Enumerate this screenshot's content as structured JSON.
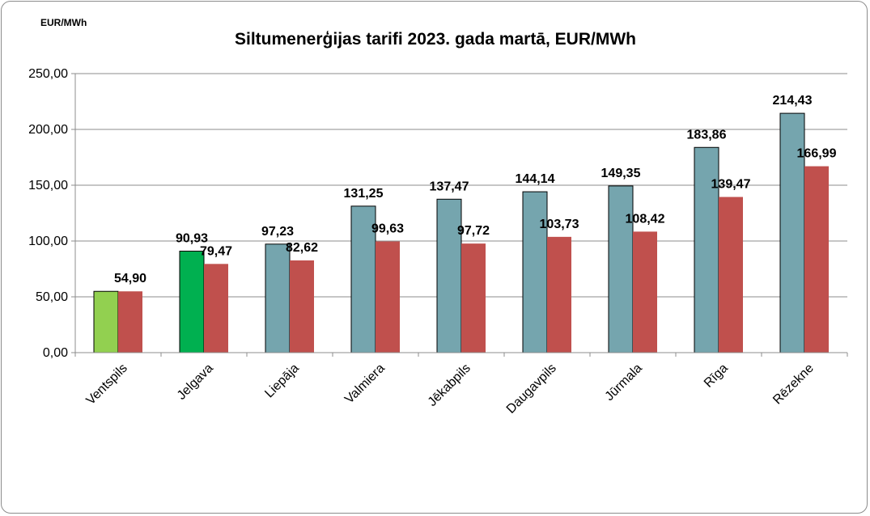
{
  "chart_data": {
    "type": "bar",
    "title": "Siltumenerģijas tarifi 2023. gada martā, EUR/MWh",
    "unit_label": "EUR/MWh",
    "xlabel": "",
    "ylabel": "",
    "ylim": [
      0,
      250
    ],
    "yticks": [
      "0,00",
      "50,00",
      "100,00",
      "150,00",
      "200,00",
      "250,00"
    ],
    "grid": true,
    "legend": "none",
    "categories": [
      "Ventspils",
      "Jelgava",
      "Liepāja",
      "Valmiera",
      "Jēkabpils",
      "Daugavpils",
      "Jūrmala",
      "Rīga",
      "Rēzekne"
    ],
    "series": [
      {
        "values": [
          54.9,
          90.93,
          97.23,
          131.25,
          137.47,
          144.14,
          149.35,
          183.86,
          214.43
        ],
        "labels": [
          "",
          "90,93",
          "97,23",
          "131,25",
          "137,47",
          "144,14",
          "149,35",
          "183,86",
          "214,43"
        ],
        "colors": [
          "#92d050",
          "#00b050",
          "#75a5ae",
          "#75a5ae",
          "#75a5ae",
          "#75a5ae",
          "#75a5ae",
          "#75a5ae",
          "#75a5ae"
        ]
      },
      {
        "values": [
          54.9,
          79.47,
          82.62,
          99.63,
          97.72,
          103.73,
          108.42,
          139.47,
          166.99
        ],
        "labels": [
          "54,90",
          "79,47",
          "82,62",
          "99,63",
          "97,72",
          "103,73",
          "108,42",
          "139,47",
          "166,99"
        ],
        "colors": [
          "#c0504d",
          "#c0504d",
          "#c0504d",
          "#c0504d",
          "#c0504d",
          "#c0504d",
          "#c0504d",
          "#c0504d",
          "#c0504d"
        ]
      }
    ]
  }
}
